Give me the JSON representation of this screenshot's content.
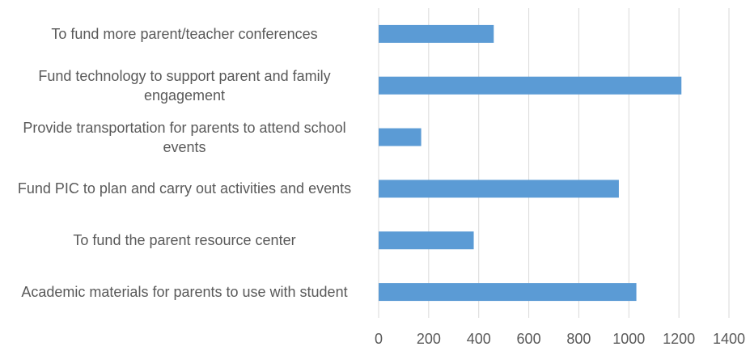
{
  "chart_data": {
    "type": "bar",
    "orientation": "horizontal",
    "categories": [
      "To fund more parent/teacher conferences",
      "Fund technology to support parent and family engagement",
      "Provide transportation for parents to attend school events",
      "Fund PIC to plan and carry out activities and events",
      "To fund the parent resource center",
      "Academic materials for parents to use with student"
    ],
    "values": [
      460,
      1210,
      170,
      960,
      380,
      1030
    ],
    "color": "#5b9bd5",
    "xlim": [
      0,
      1400
    ],
    "xticks": [
      0,
      200,
      400,
      600,
      800,
      1000,
      1200,
      1400
    ],
    "grid": true
  }
}
